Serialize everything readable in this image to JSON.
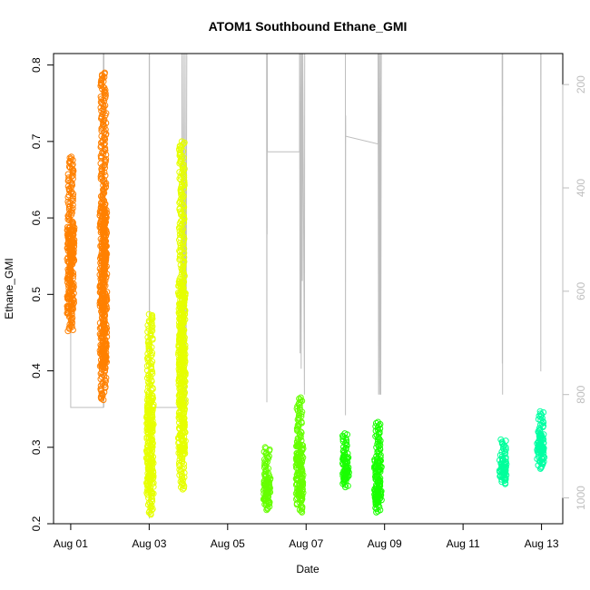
{
  "chart_data": {
    "type": "scatter",
    "title": "ATOM1 Southbound Ethane_GMI",
    "xlabel": "Date",
    "ylabel": "Ethane_GMI",
    "xlim": [
      "2016-07-31T13:30",
      "2016-08-13T13:00"
    ],
    "ylim": [
      0.2,
      0.815
    ],
    "x_ticks": [
      {
        "date": "2016-08-01",
        "label": "Aug 01"
      },
      {
        "date": "2016-08-03",
        "label": "Aug 03"
      },
      {
        "date": "2016-08-05",
        "label": "Aug 05"
      },
      {
        "date": "2016-08-07",
        "label": "Aug 07"
      },
      {
        "date": "2016-08-09",
        "label": "Aug 09"
      },
      {
        "date": "2016-08-11",
        "label": "Aug 11"
      },
      {
        "date": "2016-08-13",
        "label": "Aug 13"
      }
    ],
    "y_ticks": [
      0.2,
      0.3,
      0.4,
      0.5,
      0.6,
      0.7,
      0.8
    ],
    "right_axis": {
      "ylim": [
        1050,
        140
      ],
      "reversed": true,
      "ticks": [
        200,
        400,
        600,
        800,
        1000
      ],
      "color": "#bebebe"
    },
    "grid": false,
    "marker": "open-circle",
    "point_clusters": [
      {
        "date": "2016-08-01T00:00",
        "y_min": 0.452,
        "y_max": 0.68,
        "color": "#ff8000"
      },
      {
        "date": "2016-08-01T20:00",
        "y_min": 0.362,
        "y_max": 0.79,
        "color": "#ff8000"
      },
      {
        "date": "2016-08-03T00:30",
        "y_min": 0.212,
        "y_max": 0.474,
        "color": "#e6ff00"
      },
      {
        "date": "2016-08-03T20:00",
        "y_min": 0.245,
        "y_max": 0.7,
        "color": "#e6ff00"
      },
      {
        "date": "2016-08-06T00:00",
        "y_min": 0.218,
        "y_max": 0.3,
        "color": "#66ff00"
      },
      {
        "date": "2016-08-06T20:00",
        "y_min": 0.215,
        "y_max": 0.365,
        "color": "#66ff00"
      },
      {
        "date": "2016-08-08T00:00",
        "y_min": 0.248,
        "y_max": 0.318,
        "color": "#19ff00"
      },
      {
        "date": "2016-08-08T20:00",
        "y_min": 0.215,
        "y_max": 0.333,
        "color": "#19ff00"
      },
      {
        "date": "2016-08-12T00:30",
        "y_min": 0.252,
        "y_max": 0.31,
        "color": "#00ff9b"
      },
      {
        "date": "2016-08-12T23:30",
        "y_min": 0.272,
        "y_max": 0.347,
        "color": "#00ffa3"
      }
    ],
    "pressure_trace": {
      "color": "#bebebe",
      "points": [
        [
          "2016-08-01T00:00",
          380
        ],
        [
          "2016-08-01T00:00",
          825
        ],
        [
          "2016-08-01T20:00",
          825
        ],
        [
          "2016-08-01T20:00",
          140
        ],
        [
          "2016-08-01T20:05",
          825
        ],
        [
          "2016-08-01T20:10",
          140
        ],
        [
          "2016-08-01T20:15",
          825
        ],
        [
          "2016-08-01T20:20",
          140
        ],
        [
          "2016-08-02T20:00",
          140
        ],
        [
          "2016-08-03T00:00",
          140
        ],
        [
          "2016-08-03T00:05",
          1040
        ],
        [
          "2016-08-03T00:10",
          140
        ],
        [
          "2016-08-03T00:15",
          825
        ],
        [
          "2016-08-03T20:00",
          825
        ],
        [
          "2016-08-03T20:00",
          140
        ],
        [
          "2016-08-03T20:30",
          825
        ],
        [
          "2016-08-03T21:00",
          140
        ],
        [
          "2016-08-03T21:30",
          825
        ],
        [
          "2016-08-03T22:00",
          140
        ],
        [
          "2016-08-03T22:30",
          825
        ],
        [
          "2016-08-03T23:00",
          140
        ],
        [
          "2016-08-04T00:00",
          140
        ],
        [
          "2016-08-05T23:50",
          140
        ],
        [
          "2016-08-06T00:00",
          815
        ],
        [
          "2016-08-06T00:05",
          140
        ],
        [
          "2016-08-06T00:10",
          490
        ],
        [
          "2016-08-06T00:15",
          140
        ],
        [
          "2016-08-06T00:20",
          330
        ],
        [
          "2016-08-06T20:00",
          330
        ],
        [
          "2016-08-06T20:00",
          140
        ],
        [
          "2016-08-06T20:20",
          720
        ],
        [
          "2016-08-06T20:40",
          140
        ],
        [
          "2016-08-06T21:00",
          750
        ],
        [
          "2016-08-06T21:20",
          140
        ],
        [
          "2016-08-06T21:40",
          580
        ],
        [
          "2016-08-06T22:00",
          140
        ],
        [
          "2016-08-06T23:00",
          800
        ],
        [
          "2016-08-06T23:10",
          140
        ],
        [
          "2016-08-08T00:00",
          140
        ],
        [
          "2016-08-08T00:05",
          840
        ],
        [
          "2016-08-08T00:10",
          260
        ],
        [
          "2016-08-08T00:15",
          300
        ],
        [
          "2016-08-08T20:00",
          315
        ],
        [
          "2016-08-08T20:00",
          140
        ],
        [
          "2016-08-08T20:20",
          800
        ],
        [
          "2016-08-08T20:40",
          140
        ],
        [
          "2016-08-08T21:00",
          800
        ],
        [
          "2016-08-08T21:20",
          140
        ],
        [
          "2016-08-08T21:40",
          800
        ],
        [
          "2016-08-08T22:00",
          140
        ],
        [
          "2016-08-08T23:00",
          140
        ],
        [
          "2016-08-11T23:55",
          140
        ],
        [
          "2016-08-12T00:00",
          740
        ],
        [
          "2016-08-12T00:05",
          140
        ],
        [
          "2016-08-12T00:10",
          800
        ],
        [
          "2016-08-12T00:15",
          140
        ],
        [
          "2016-08-12T23:30",
          140
        ],
        [
          "2016-08-12T23:35",
          755
        ],
        [
          "2016-08-12T23:40",
          140
        ]
      ]
    }
  }
}
